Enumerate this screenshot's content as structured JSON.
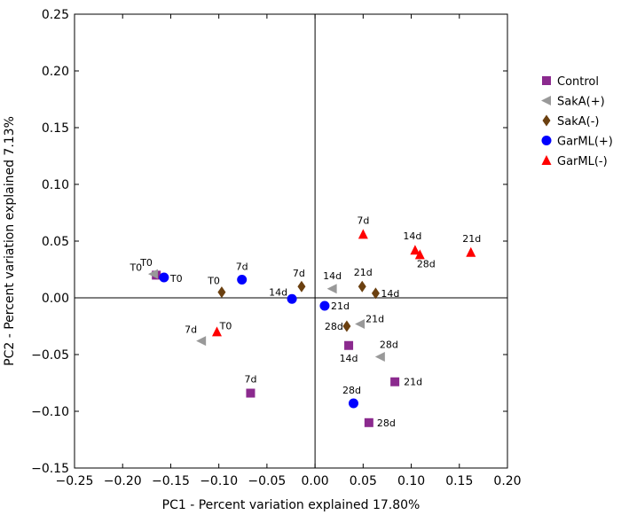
{
  "chart_data": {
    "type": "scatter",
    "title": "",
    "xlabel": "PC1 - Percent variation explained 17.80%",
    "ylabel": "PC2 - Percent variation explained 7.13%",
    "xlim": [
      -0.25,
      0.2
    ],
    "ylim": [
      -0.15,
      0.25
    ],
    "x_ticks": [
      "−0.25",
      "−0.20",
      "−0.15",
      "−0.10",
      "−0.05",
      "0.00",
      "0.05",
      "0.10",
      "0.15",
      "0.20"
    ],
    "y_ticks": [
      "0.25",
      "0.20",
      "0.15",
      "0.10",
      "0.05",
      "0.00",
      "−0.05",
      "−0.10",
      "−0.15"
    ],
    "x_tick_values": [
      -0.25,
      -0.2,
      -0.15,
      -0.1,
      -0.05,
      0.0,
      0.05,
      0.1,
      0.15,
      0.2
    ],
    "y_tick_values": [
      0.25,
      0.2,
      0.15,
      0.1,
      0.05,
      0.0,
      -0.05,
      -0.1,
      -0.15
    ],
    "grid": false,
    "legend_position": "right",
    "series": [
      {
        "name": "Control",
        "marker": "square",
        "color": "#8B2A8E",
        "points": [
          {
            "x": -0.165,
            "y": 0.02,
            "label": "T0"
          },
          {
            "x": -0.067,
            "y": -0.084,
            "label": "7d"
          },
          {
            "x": 0.035,
            "y": -0.042,
            "label": "14d"
          },
          {
            "x": 0.083,
            "y": -0.074,
            "label": "21d"
          },
          {
            "x": 0.056,
            "y": -0.11,
            "label": "28d"
          }
        ]
      },
      {
        "name": "SakA(+)",
        "marker": "triangle-left",
        "color": "#999999",
        "points": [
          {
            "x": -0.168,
            "y": 0.021,
            "label": "T0"
          },
          {
            "x": -0.118,
            "y": -0.038,
            "label": "7d"
          },
          {
            "x": 0.018,
            "y": 0.008,
            "label": "14d"
          },
          {
            "x": 0.047,
            "y": -0.023,
            "label": "21d"
          },
          {
            "x": 0.068,
            "y": -0.052,
            "label": "28d"
          }
        ]
      },
      {
        "name": "SakA(-)",
        "marker": "diamond",
        "color": "#6B4010",
        "points": [
          {
            "x": -0.097,
            "y": 0.005,
            "label": "T0"
          },
          {
            "x": -0.014,
            "y": 0.01,
            "label": "7d"
          },
          {
            "x": 0.063,
            "y": 0.004,
            "label": "14d"
          },
          {
            "x": 0.049,
            "y": 0.01,
            "label": "21d"
          },
          {
            "x": 0.033,
            "y": -0.025,
            "label": "28d"
          }
        ]
      },
      {
        "name": "GarML(+)",
        "marker": "circle",
        "color": "#0000FF",
        "points": [
          {
            "x": -0.157,
            "y": 0.018,
            "label": "T0"
          },
          {
            "x": -0.076,
            "y": 0.016,
            "label": "7d"
          },
          {
            "x": -0.024,
            "y": -0.001,
            "label": "14d"
          },
          {
            "x": 0.01,
            "y": -0.007,
            "label": "21d"
          },
          {
            "x": 0.04,
            "y": -0.093,
            "label": "28d"
          }
        ]
      },
      {
        "name": "GarML(-)",
        "marker": "triangle-up",
        "color": "#FF0000",
        "points": [
          {
            "x": -0.102,
            "y": -0.03,
            "label": "T0"
          },
          {
            "x": 0.05,
            "y": 0.056,
            "label": "7d"
          },
          {
            "x": 0.104,
            "y": 0.042,
            "label": "14d"
          },
          {
            "x": 0.162,
            "y": 0.04,
            "label": "21d"
          },
          {
            "x": 0.109,
            "y": 0.038,
            "label": "28d"
          }
        ]
      }
    ]
  }
}
